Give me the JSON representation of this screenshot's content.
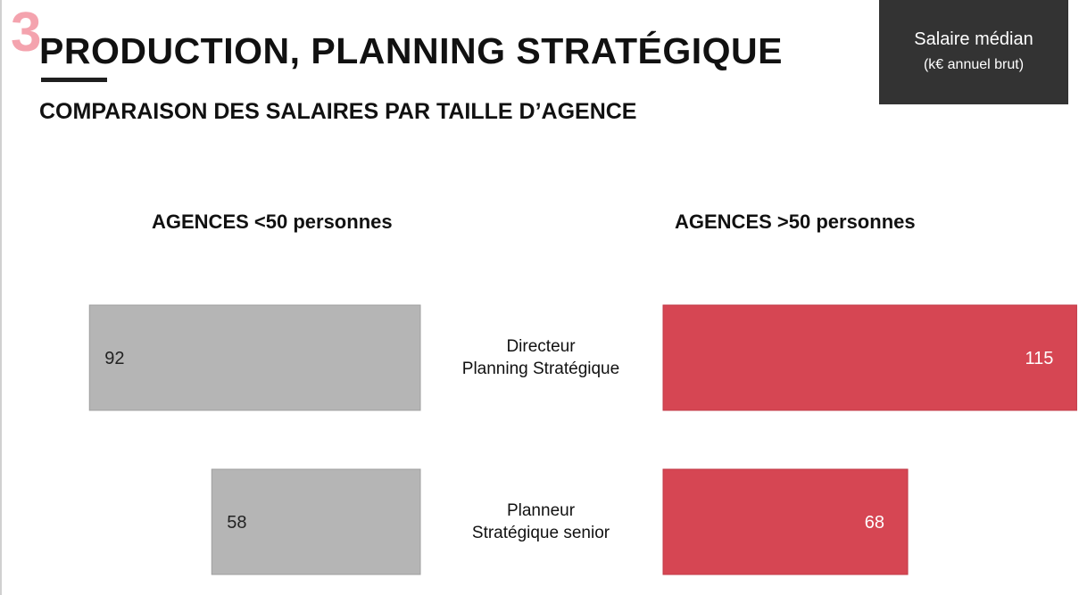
{
  "header": {
    "section_number": "3",
    "title": "PRODUCTION, PLANNING STRATÉGIQUE",
    "subtitle": "COMPARAISON DES SALAIRES PAR TAILLE D’AGENCE"
  },
  "legend": {
    "line1": "Salaire médian",
    "line2": "(k€ annuel brut)"
  },
  "colors": {
    "small_agency": "#b5b5b5",
    "large_agency": "#d64653",
    "legend_bg": "#333333",
    "accent_number": "#f4a3ae"
  },
  "chart_data": {
    "type": "bar",
    "orientation": "horizontal-butterfly",
    "title": "COMPARAISON DES SALAIRES PAR TAILLE D’AGENCE",
    "unit": "(k€ annuel brut)",
    "categories": [
      [
        "Directeur",
        "Planning Stratégique"
      ],
      [
        "Planneur",
        "Stratégique senior"
      ]
    ],
    "series": [
      {
        "name": "AGENCES <50 personnes",
        "values": [
          92,
          58
        ],
        "side": "left"
      },
      {
        "name": "AGENCES >50 personnes",
        "values": [
          115,
          68
        ],
        "side": "right"
      }
    ]
  }
}
